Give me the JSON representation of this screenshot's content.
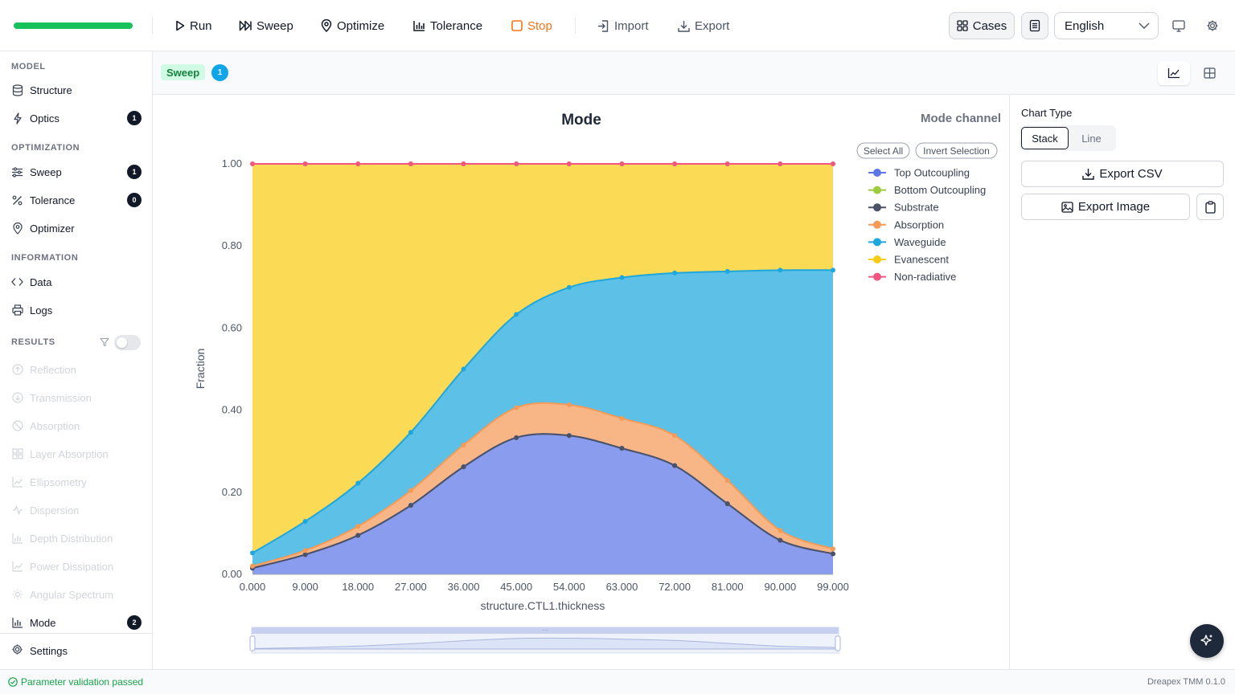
{
  "toolbar": {
    "run": "Run",
    "sweep": "Sweep",
    "optimize": "Optimize",
    "tolerance": "Tolerance",
    "stop": "Stop",
    "import": "Import",
    "export": "Export",
    "cases": "Cases",
    "language": "English",
    "progress": 1.0
  },
  "sidebar": {
    "model_title": "MODEL",
    "model_items": [
      {
        "label": "Structure",
        "icon": "database-icon"
      },
      {
        "label": "Optics",
        "icon": "bolt-icon",
        "badge": "1"
      }
    ],
    "optimization_title": "OPTIMIZATION",
    "optimization_items": [
      {
        "label": "Sweep",
        "icon": "sliders-icon",
        "badge": "1"
      },
      {
        "label": "Tolerance",
        "icon": "percent-icon",
        "badge": "0"
      },
      {
        "label": "Optimizer",
        "icon": "pin-icon"
      }
    ],
    "information_title": "INFORMATION",
    "information_items": [
      {
        "label": "Data",
        "icon": "code-icon"
      },
      {
        "label": "Logs",
        "icon": "printer-icon"
      }
    ],
    "results_title": "RESULTS",
    "results_items": [
      {
        "label": "Reflection",
        "disabled": true
      },
      {
        "label": "Transmission",
        "disabled": true
      },
      {
        "label": "Absorption",
        "disabled": true
      },
      {
        "label": "Layer Absorption",
        "disabled": true
      },
      {
        "label": "Ellipsometry",
        "disabled": true
      },
      {
        "label": "Dispersion",
        "disabled": true
      },
      {
        "label": "Depth Distribution",
        "disabled": true
      },
      {
        "label": "Power Dissipation",
        "disabled": true
      },
      {
        "label": "Angular Spectrum",
        "disabled": true
      },
      {
        "label": "Mode",
        "disabled": false,
        "badge": "2"
      }
    ],
    "settings": "Settings"
  },
  "tabbar": {
    "active_tab": "Sweep",
    "count": "1"
  },
  "chart_panel": {
    "chart_type_label": "Chart Type",
    "chart_type_options": [
      "Stack",
      "Line"
    ],
    "chart_type_selected": "Stack",
    "export_csv": "Export CSV",
    "export_image": "Export Image",
    "select_all": "Select All",
    "invert_selection": "Invert Selection",
    "channel_label": "Mode channel"
  },
  "chart_data": {
    "type": "area",
    "stacked": true,
    "title": "Mode",
    "xlabel": "structure.CTL1.thickness",
    "ylabel": "Fraction",
    "ylim": [
      0,
      1
    ],
    "yticks": [
      "0.00",
      "0.20",
      "0.40",
      "0.60",
      "0.80",
      "1.00"
    ],
    "x": [
      0,
      9,
      18,
      27,
      36,
      45,
      54,
      63,
      72,
      81,
      90,
      99
    ],
    "xtick_labels": [
      "0.000",
      "9.000",
      "18.000",
      "27.000",
      "36.000",
      "45.000",
      "54.000",
      "63.000",
      "72.000",
      "81.000",
      "90.000",
      "99.000"
    ],
    "legend_position": "right",
    "grid": false,
    "series": [
      {
        "name": "Top Outcoupling",
        "color": "#5b76e6",
        "values": [
          0.015,
          0.048,
          0.095,
          0.168,
          0.262,
          0.333,
          0.338,
          0.307,
          0.265,
          0.172,
          0.083,
          0.05
        ]
      },
      {
        "name": "Bottom Outcoupling",
        "color": "#9ecc3f",
        "values": [
          0,
          0,
          0,
          0,
          0,
          0,
          0,
          0,
          0,
          0,
          0,
          0
        ]
      },
      {
        "name": "Substrate",
        "color": "#4b5266",
        "values": [
          0,
          0,
          0,
          0,
          0,
          0,
          0,
          0,
          0,
          0,
          0,
          0
        ]
      },
      {
        "name": "Absorption",
        "color": "#f59a57",
        "values": [
          0.005,
          0.01,
          0.022,
          0.036,
          0.053,
          0.073,
          0.075,
          0.073,
          0.073,
          0.057,
          0.024,
          0.012
        ]
      },
      {
        "name": "Waveguide",
        "color": "#1ea7dd",
        "values": [
          0.032,
          0.071,
          0.105,
          0.142,
          0.185,
          0.227,
          0.286,
          0.343,
          0.396,
          0.509,
          0.634,
          0.679
        ]
      },
      {
        "name": "Evanescent",
        "color": "#facc15",
        "values": [
          0.948,
          0.871,
          0.778,
          0.654,
          0.5,
          0.367,
          0.301,
          0.277,
          0.266,
          0.262,
          0.259,
          0.259
        ]
      },
      {
        "name": "Non-radiative",
        "color": "#f0567f",
        "values": [
          0,
          0,
          0,
          0,
          0,
          0,
          0,
          0,
          0,
          0,
          0,
          0
        ]
      }
    ]
  },
  "status": {
    "message": "Parameter validation passed",
    "version": "Dreapex TMM 0.1.0"
  }
}
